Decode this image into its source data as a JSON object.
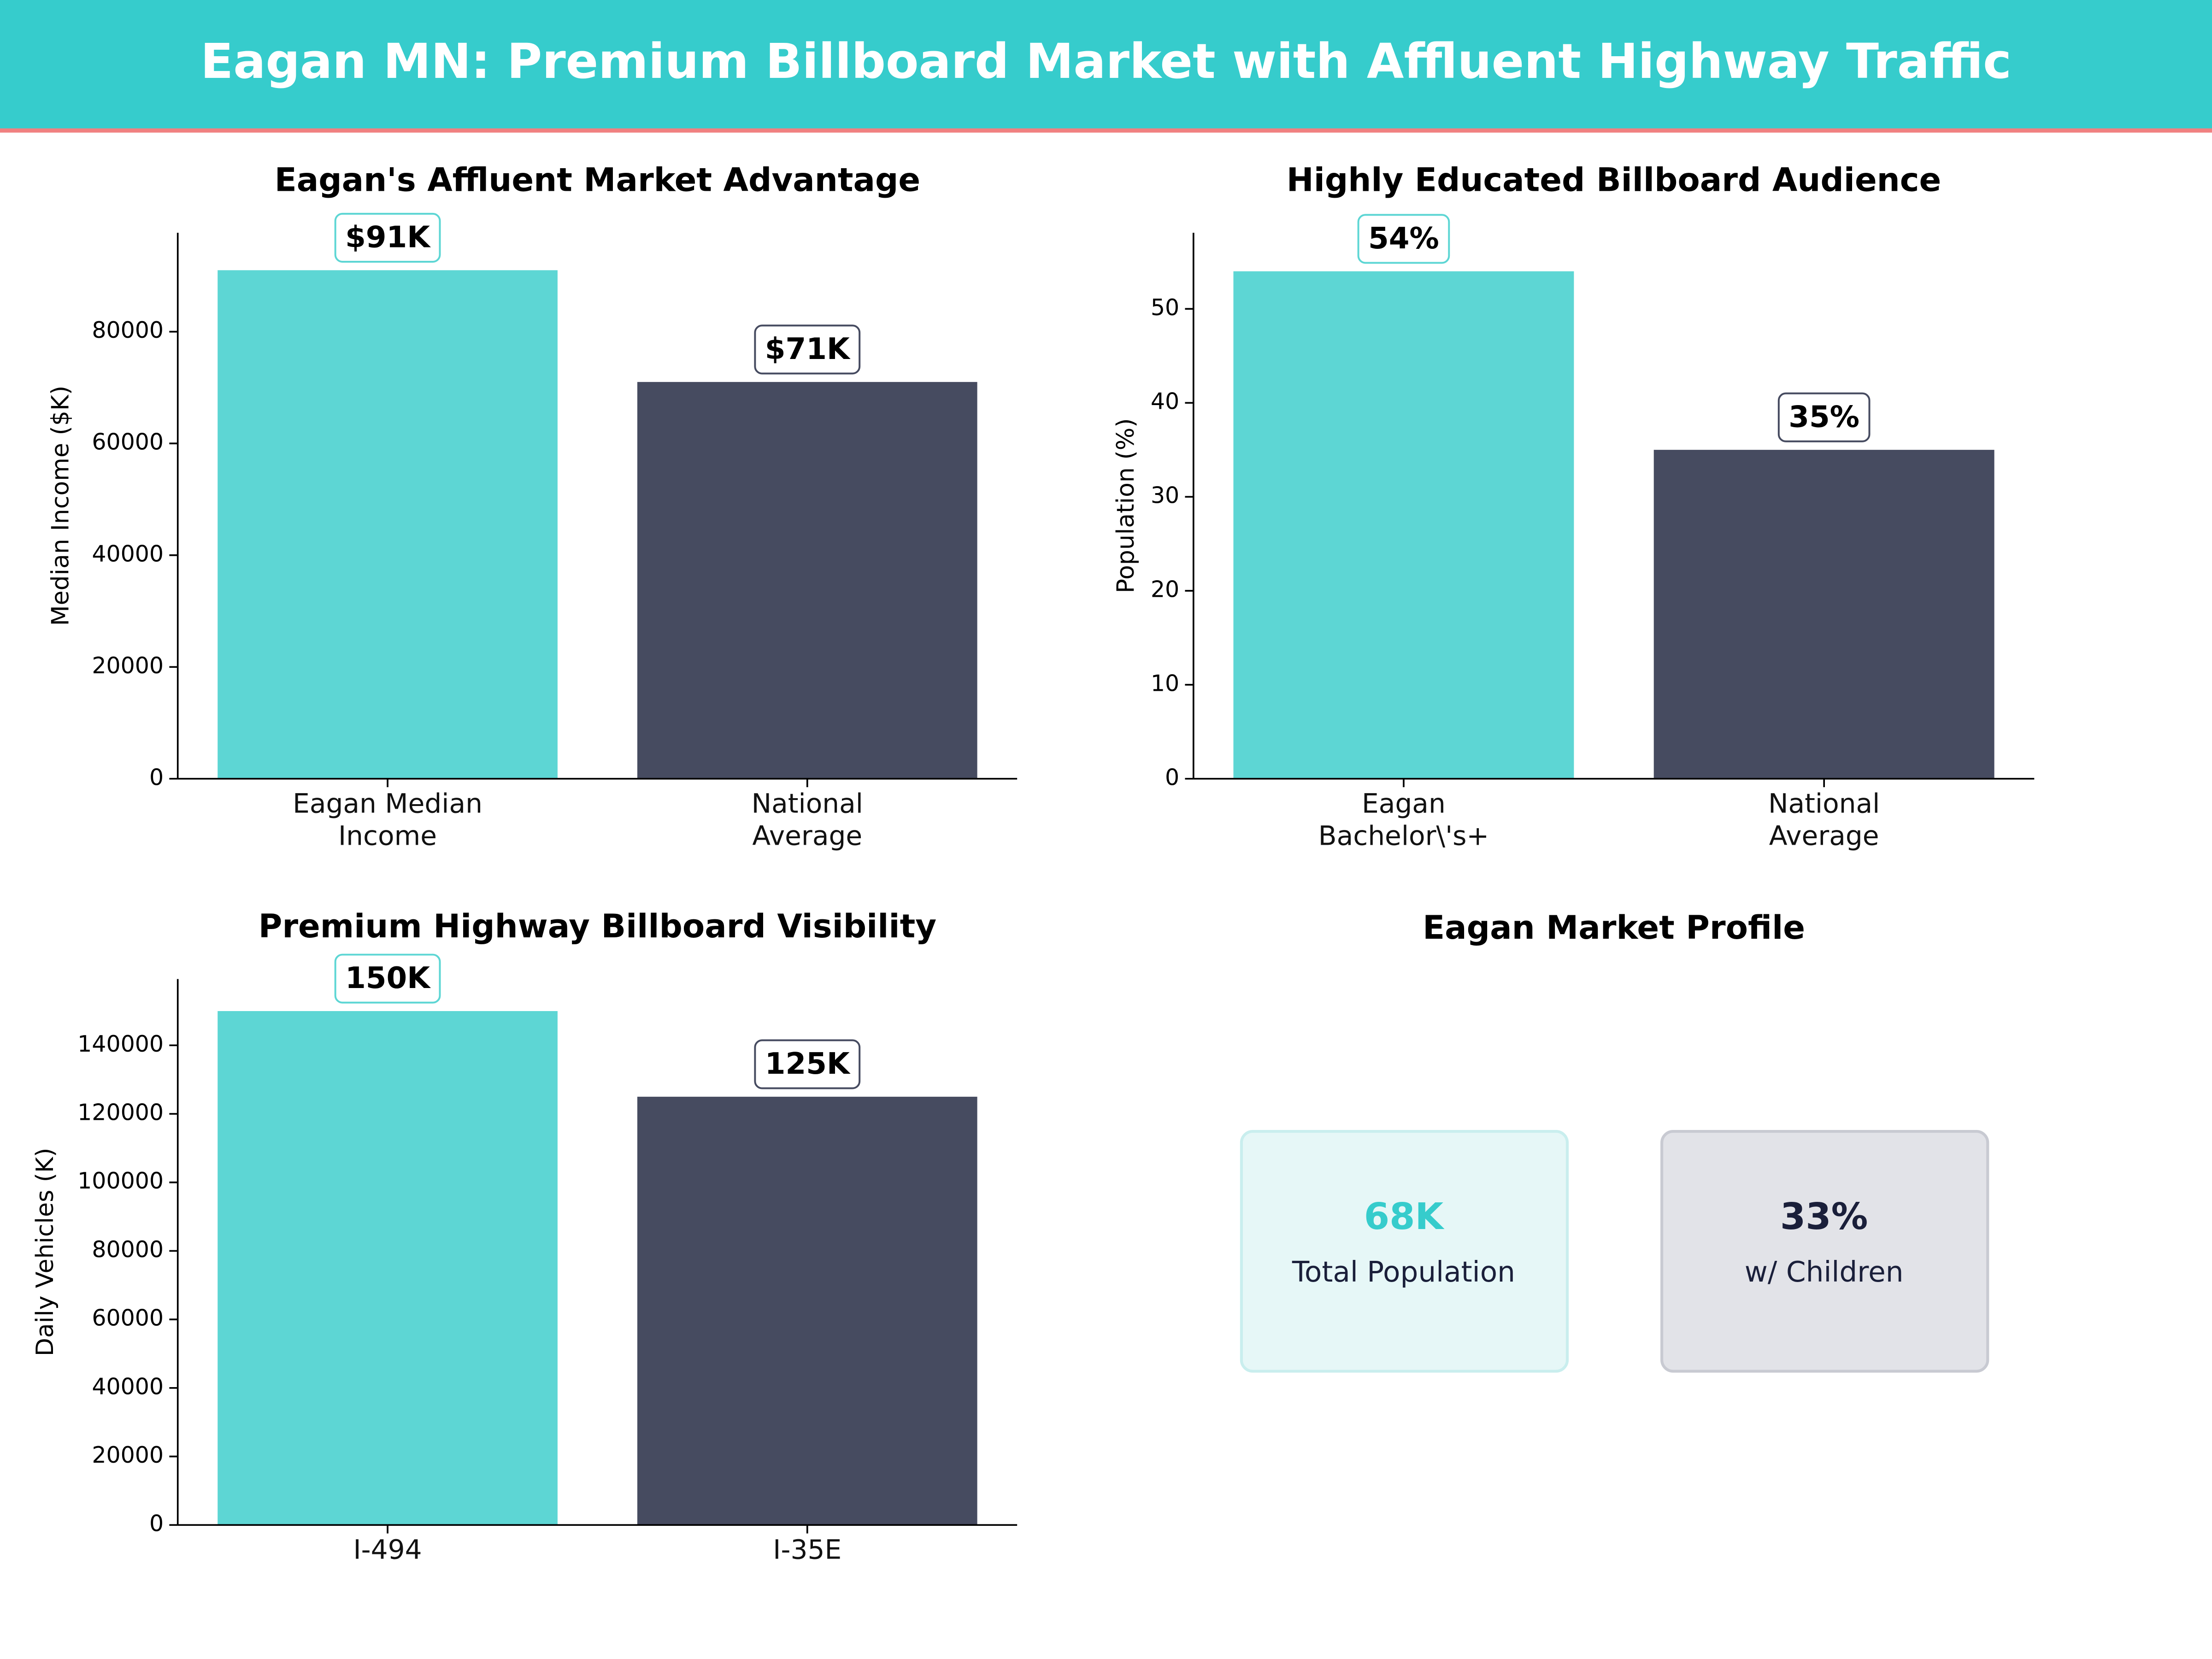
{
  "header": {
    "title": "Eagan MN: Premium Billboard Market with Affluent Highway Traffic"
  },
  "chart_data": [
    {
      "type": "bar",
      "title": "Eagan's Affluent Market Advantage",
      "y_label": "Median Income ($K)",
      "categories": [
        "Eagan Median\nIncome",
        "National\nAverage"
      ],
      "values": [
        91000,
        71000
      ],
      "value_labels": [
        "$91K",
        "$71K"
      ],
      "colors": [
        "#5dd6d4",
        "#464b60"
      ],
      "ylim": [
        0,
        97700
      ],
      "yticks": [
        0,
        20000,
        40000,
        60000,
        80000
      ]
    },
    {
      "type": "bar",
      "title": "Highly Educated Billboard Audience",
      "y_label": "Population (%)",
      "categories": [
        "Eagan\nBachelor\\'s+",
        "National\nAverage"
      ],
      "values": [
        54,
        35
      ],
      "value_labels": [
        "54%",
        "35%"
      ],
      "colors": [
        "#5dd6d4",
        "#464b60"
      ],
      "ylim": [
        0,
        58.1
      ],
      "yticks": [
        0,
        10,
        20,
        30,
        40,
        50
      ]
    },
    {
      "type": "bar",
      "title": "Premium Highway Billboard Visibility",
      "y_label": "Daily Vehicles (K)",
      "categories": [
        "I-494",
        "I-35E"
      ],
      "values": [
        150000,
        125000
      ],
      "value_labels": [
        "150K",
        "125K"
      ],
      "colors": [
        "#5dd6d4",
        "#464b60"
      ],
      "ylim": [
        0,
        159350
      ],
      "yticks": [
        0,
        20000,
        40000,
        60000,
        80000,
        100000,
        120000,
        140000
      ]
    }
  ],
  "profile": {
    "title": "Eagan Market Profile",
    "cards": [
      {
        "value": "68K",
        "label": "Total Population"
      },
      {
        "value": "33%",
        "label": "w/ Children"
      }
    ]
  }
}
